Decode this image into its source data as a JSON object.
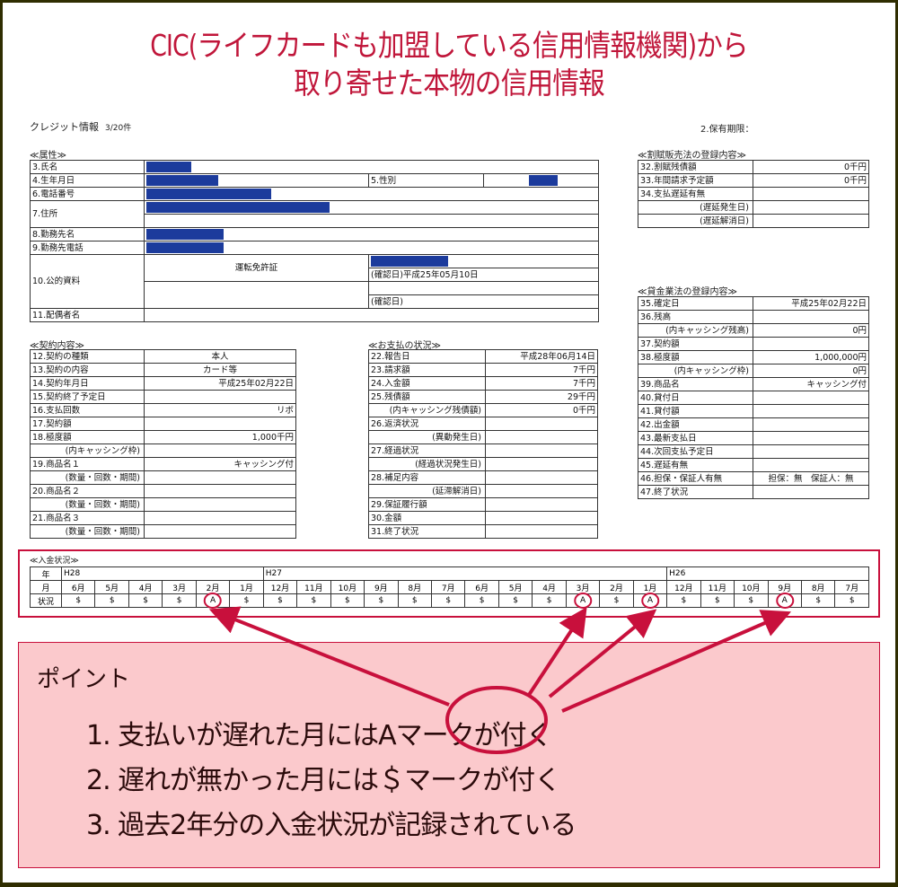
{
  "title": {
    "line1": "CIC(ライフカードも加盟している信用情報機関)から",
    "line2": "取り寄せた本物の信用情報"
  },
  "doc": {
    "heading": "クレジット情報",
    "count": "3/20件",
    "retention": "2.保有期限："
  },
  "attributes": {
    "section": "≪属性≫",
    "name": "3.氏名",
    "birth": "4.生年月日",
    "gender": "5.性別",
    "phone": "6.電話番号",
    "address": "7.住所",
    "employer": "8.勤務先名",
    "employer_phone": "9.勤務先電話",
    "public_doc": "10.公的資料",
    "public_doc_type": "運転免許証",
    "confirm1": "(確認日)平成25年05月10日",
    "confirm2": "(確認日)",
    "spouse": "11.配偶者名"
  },
  "contract": {
    "section": "≪契約内容≫",
    "rows": [
      {
        "label": "12.契約の種類",
        "value": "本人",
        "align": "center"
      },
      {
        "label": "13.契約の内容",
        "value": "カード等",
        "align": "center"
      },
      {
        "label": "14.契約年月日",
        "value": "平成25年02月22日"
      },
      {
        "label": "15.契約終了予定日",
        "value": ""
      },
      {
        "label": "16.支払回数",
        "value": "リボ"
      },
      {
        "label": "17.契約額",
        "value": ""
      },
      {
        "label": "18.極度額",
        "value": "1,000千円"
      },
      {
        "label": "(内キャッシング枠)",
        "value": "",
        "sub": true
      },
      {
        "label": "19.商品名１",
        "value": "キャッシング付"
      },
      {
        "label": "(数量・回数・期間)",
        "value": "",
        "sub": true
      },
      {
        "label": "20.商品名２",
        "value": ""
      },
      {
        "label": "(数量・回数・期間)",
        "value": "",
        "sub": true
      },
      {
        "label": "21.商品名３",
        "value": ""
      },
      {
        "label": "(数量・回数・期間)",
        "value": "",
        "sub": true
      }
    ]
  },
  "payment_status": {
    "section": "≪お支払の状況≫",
    "rows": [
      {
        "label": "22.報告日",
        "value": "平成28年06月14日"
      },
      {
        "label": "23.請求額",
        "value": "7千円"
      },
      {
        "label": "24.入金額",
        "value": "7千円"
      },
      {
        "label": "25.残債額",
        "value": "29千円"
      },
      {
        "label": "(内キャッシング残債額)",
        "value": "0千円",
        "sub": true
      },
      {
        "label": "26.返済状況",
        "value": ""
      },
      {
        "label": "(異動発生日)",
        "value": "",
        "sub": true
      },
      {
        "label": "27.経過状況",
        "value": ""
      },
      {
        "label": "(経過状況発生日)",
        "value": "",
        "sub": true
      },
      {
        "label": "28.補足内容",
        "value": ""
      },
      {
        "label": "(延滞解消日)",
        "value": "",
        "sub": true
      },
      {
        "label": "29.保証履行額",
        "value": ""
      },
      {
        "label": "30.金額",
        "value": ""
      },
      {
        "label": "31.終了状況",
        "value": ""
      }
    ]
  },
  "installment": {
    "section": "≪割賦販売法の登録内容≫",
    "rows": [
      {
        "label": "32.割賦残債額",
        "value": "0千円"
      },
      {
        "label": "33.年間請求予定額",
        "value": "0千円"
      },
      {
        "label": "34.支払遅延有無",
        "value": ""
      },
      {
        "label": "(遅延発生日)",
        "value": "",
        "sub": true
      },
      {
        "label": "(遅延解消日)",
        "value": "",
        "sub": true
      }
    ]
  },
  "moneylending": {
    "section": "≪貸金業法の登録内容≫",
    "rows": [
      {
        "label": "35.確定日",
        "value": "平成25年02月22日"
      },
      {
        "label": "36.残高",
        "value": ""
      },
      {
        "label": "(内キャッシング残高)",
        "value": "0円",
        "sub": true
      },
      {
        "label": "37.契約額",
        "value": ""
      },
      {
        "label": "38.極度額",
        "value": "1,000,000円"
      },
      {
        "label": "(内キャッシング枠)",
        "value": "0円",
        "sub": true
      },
      {
        "label": "39.商品名",
        "value": "キャッシング付"
      },
      {
        "label": "40.貸付日",
        "value": ""
      },
      {
        "label": "41.貸付額",
        "value": ""
      },
      {
        "label": "42.出金額",
        "value": ""
      },
      {
        "label": "43.最新支払日",
        "value": ""
      },
      {
        "label": "44.次回支払予定日",
        "value": ""
      },
      {
        "label": "45.遅延有無",
        "value": ""
      },
      {
        "label": "46.担保・保証人有無",
        "value": "担保：無　保証人：無",
        "align": "center"
      },
      {
        "label": "47.終了状況",
        "value": ""
      }
    ]
  },
  "deposit": {
    "section": "≪入金状況≫",
    "year_label": "年",
    "month_label": "月",
    "status_label": "状況",
    "years": [
      {
        "label": "H28",
        "span": 6
      },
      {
        "label": "H27",
        "span": 12
      },
      {
        "label": "H26",
        "span": 6
      }
    ],
    "months": [
      "6月",
      "5月",
      "4月",
      "3月",
      "2月",
      "1月",
      "12月",
      "11月",
      "10月",
      "9月",
      "8月",
      "7月",
      "6月",
      "5月",
      "4月",
      "3月",
      "2月",
      "1月",
      "12月",
      "11月",
      "10月",
      "9月",
      "8月",
      "7月"
    ],
    "status": [
      "$",
      "$",
      "$",
      "$",
      "A",
      "$",
      "$",
      "$",
      "$",
      "$",
      "$",
      "$",
      "$",
      "$",
      "$",
      "A",
      "$",
      "A",
      "$",
      "$",
      "$",
      "A",
      "$",
      "$"
    ]
  },
  "points": {
    "heading": "ポイント",
    "items": [
      "1. 支払いが遅れた月にはAマークが付く",
      "2. 遅れが無かった月には＄マークが付く",
      "3. 過去2年分の入金状況が記録されている"
    ]
  },
  "colors": {
    "accent": "#c0163a",
    "highlight_bg": "#fbc9cc",
    "redaction": "#1c3b9c",
    "frame": "#2f2d00"
  }
}
